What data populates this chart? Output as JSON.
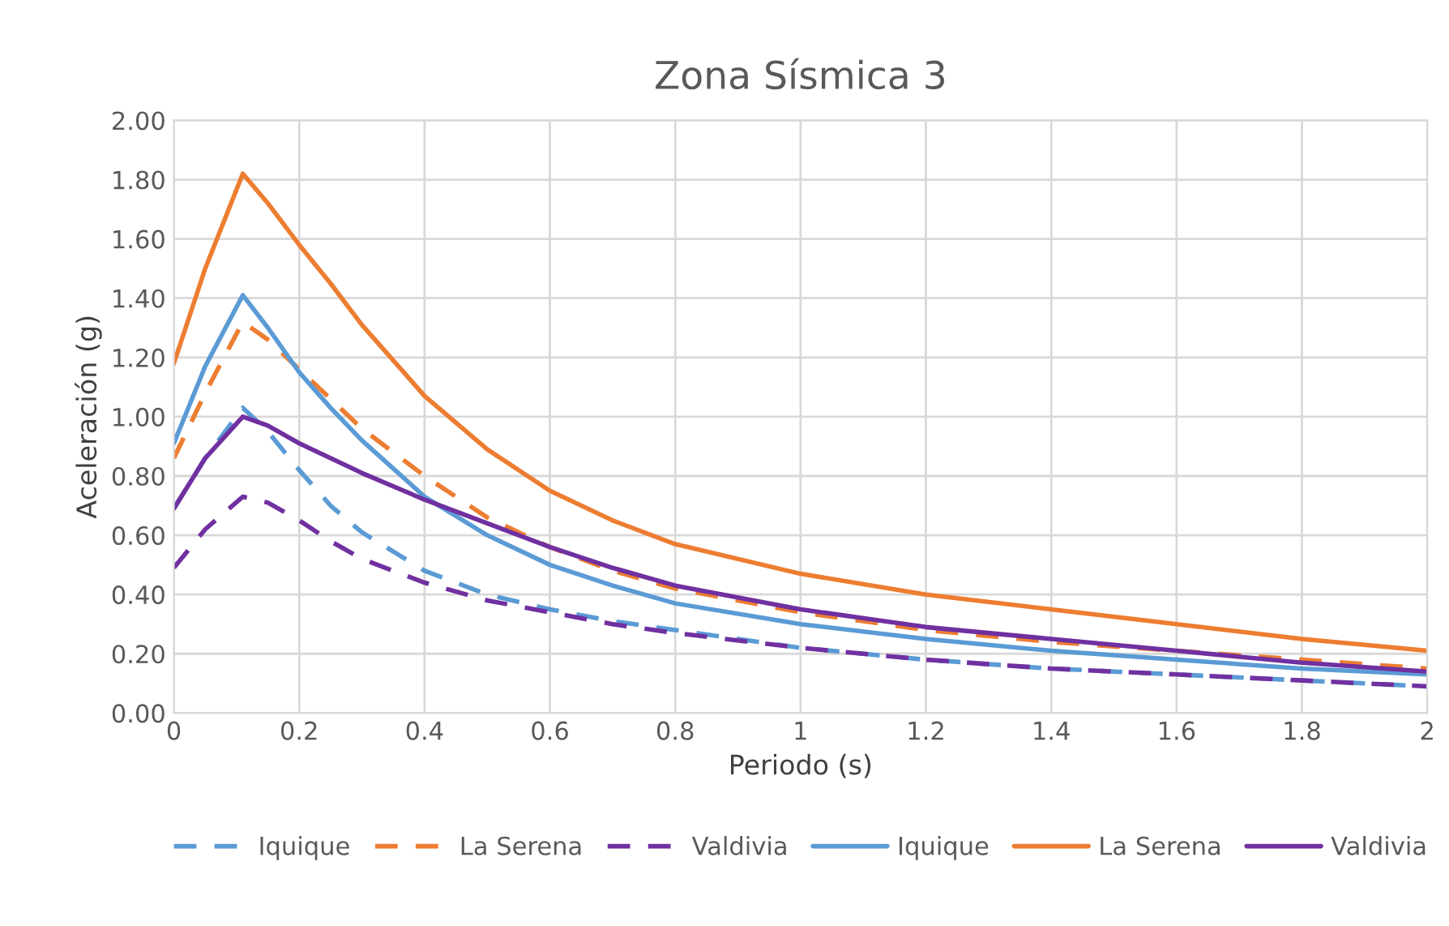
{
  "chart_data": {
    "type": "line",
    "title": "Zona Sísmica 3",
    "xlabel": "Periodo (s)",
    "ylabel": "Aceleración (g)",
    "x": [
      0,
      0.05,
      0.11,
      0.15,
      0.2,
      0.25,
      0.3,
      0.4,
      0.5,
      0.6,
      0.7,
      0.8,
      1.0,
      1.2,
      1.4,
      1.6,
      1.8,
      2.0
    ],
    "xlim": [
      0,
      2
    ],
    "xticks": [
      0,
      0.2,
      0.4,
      0.6,
      0.8,
      1,
      1.2,
      1.4,
      1.6,
      1.8,
      2
    ],
    "ylim": [
      0,
      2
    ],
    "yticks": [
      {
        "value": 0,
        "label": "0.00"
      },
      {
        "value": 0.2,
        "label": "0.20"
      },
      {
        "value": 0.4,
        "label": "0.40"
      },
      {
        "value": 0.6,
        "label": "0.60"
      },
      {
        "value": 0.8,
        "label": "0.80"
      },
      {
        "value": 1,
        "label": "1.00"
      },
      {
        "value": 1.2,
        "label": "1.20"
      },
      {
        "value": 1.4,
        "label": "1.40"
      },
      {
        "value": 1.6,
        "label": "1.60"
      },
      {
        "value": 1.8,
        "label": "1.80"
      },
      {
        "value": 2,
        "label": "2.00"
      }
    ],
    "grid": true,
    "legend": "bottom",
    "marker": "none",
    "series": [
      {
        "name": "Iquique",
        "color": "#5b9bd5",
        "line_style": "dashed",
        "values": [
          0.69,
          0.86,
          1.03,
          0.95,
          0.82,
          0.7,
          0.61,
          0.48,
          0.4,
          0.35,
          0.31,
          0.28,
          0.22,
          0.18,
          0.15,
          0.13,
          0.11,
          0.09
        ]
      },
      {
        "name": "La Serena",
        "color": "#ed7d31",
        "line_style": "dashed",
        "values": [
          0.86,
          1.08,
          1.32,
          1.26,
          1.16,
          1.06,
          0.96,
          0.8,
          0.66,
          0.56,
          0.48,
          0.42,
          0.34,
          0.28,
          0.24,
          0.21,
          0.18,
          0.15
        ]
      },
      {
        "name": "Valdivia",
        "color": "#7030a0",
        "line_style": "dashed",
        "values": [
          0.49,
          0.62,
          0.73,
          0.71,
          0.65,
          0.58,
          0.52,
          0.44,
          0.38,
          0.34,
          0.3,
          0.27,
          0.22,
          0.18,
          0.15,
          0.13,
          0.11,
          0.09
        ]
      },
      {
        "name": "Iquique",
        "color": "#5b9bd5",
        "line_style": "solid",
        "values": [
          0.91,
          1.17,
          1.41,
          1.3,
          1.15,
          1.03,
          0.92,
          0.73,
          0.6,
          0.5,
          0.43,
          0.37,
          0.3,
          0.25,
          0.21,
          0.18,
          0.15,
          0.13
        ]
      },
      {
        "name": "La Serena",
        "color": "#ed7d31",
        "line_style": "solid",
        "values": [
          1.18,
          1.5,
          1.82,
          1.72,
          1.58,
          1.45,
          1.31,
          1.07,
          0.89,
          0.75,
          0.65,
          0.57,
          0.47,
          0.4,
          0.35,
          0.3,
          0.25,
          0.21
        ]
      },
      {
        "name": "Valdivia",
        "color": "#7030a0",
        "line_style": "solid",
        "values": [
          0.69,
          0.86,
          1.0,
          0.97,
          0.91,
          0.86,
          0.81,
          0.72,
          0.64,
          0.56,
          0.49,
          0.43,
          0.35,
          0.29,
          0.25,
          0.21,
          0.17,
          0.14
        ]
      }
    ]
  }
}
